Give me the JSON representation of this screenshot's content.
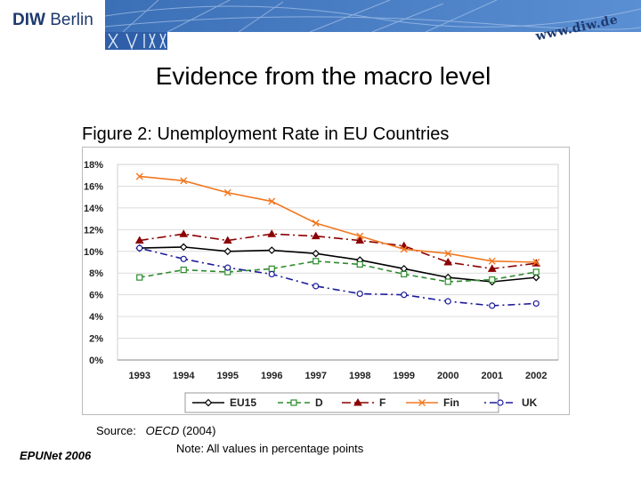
{
  "header": {
    "logo_bold": "DIW",
    "logo_regular": " Berlin",
    "website": "www.diw.de"
  },
  "slide_title": "Evidence from the macro level",
  "figure_caption": "Figure 2: Unemployment Rate in EU Countries",
  "source_label": "Source:",
  "source_value": "OECD",
  "source_year": " (2004)",
  "note": "Note: All values in percentage points",
  "footer_left": "EPUNet 2006",
  "colors": {
    "EU15": "#000000",
    "D": "#2e8b2e",
    "F": "#8b0000",
    "Fin": "#f07820",
    "UK": "#1a1a9a"
  },
  "chart_data": {
    "type": "line",
    "title": "",
    "xlabel": "",
    "ylabel": "",
    "categories": [
      "1993",
      "1994",
      "1995",
      "1996",
      "1997",
      "1998",
      "1999",
      "2000",
      "2001",
      "2002"
    ],
    "ylim": [
      0,
      18
    ],
    "yticks": [
      "0%",
      "2%",
      "4%",
      "6%",
      "8%",
      "10%",
      "12%",
      "14%",
      "16%",
      "18%"
    ],
    "legend_position": "bottom",
    "grid": true,
    "series": [
      {
        "name": "EU15",
        "values": [
          10.3,
          10.4,
          10.0,
          10.1,
          9.8,
          9.2,
          8.4,
          7.6,
          7.2,
          7.6
        ]
      },
      {
        "name": "D",
        "values": [
          7.6,
          8.3,
          8.1,
          8.4,
          9.1,
          8.8,
          7.9,
          7.2,
          7.4,
          8.1
        ]
      },
      {
        "name": "F",
        "values": [
          11.0,
          11.6,
          11.0,
          11.6,
          11.4,
          11.0,
          10.5,
          9.0,
          8.4,
          8.9
        ]
      },
      {
        "name": "Fin",
        "values": [
          16.9,
          16.5,
          15.4,
          14.6,
          12.6,
          11.4,
          10.2,
          9.8,
          9.1,
          9.0
        ]
      },
      {
        "name": "UK",
        "values": [
          10.3,
          9.3,
          8.5,
          7.9,
          6.8,
          6.1,
          6.0,
          5.4,
          5.0,
          5.2
        ]
      }
    ]
  }
}
